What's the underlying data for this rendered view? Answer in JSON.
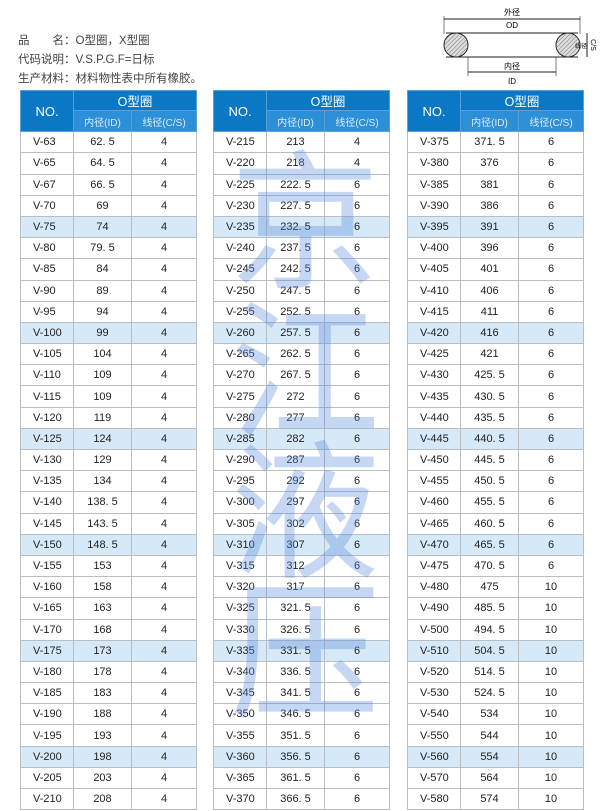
{
  "info": {
    "line1": "品　　名：O型圈，X型圈",
    "line2": "代码说明：V.S.P.G.F=日标",
    "line3": "生产材料：材料物性表中所有橡胶。"
  },
  "diagram": {
    "od_cn": "外径",
    "od": "OD",
    "id_cn": "内径",
    "id": "ID",
    "cs_cn": "线径",
    "cs": "C/S"
  },
  "watermark": [
    "京",
    "江",
    "液",
    "压"
  ],
  "header": {
    "no": "NO.",
    "group": "O型圈",
    "id": "内径(ID)",
    "cs": "线径(C/S)"
  },
  "colors": {
    "header": "#0b78c6",
    "highlight": "#d6e9f8"
  },
  "tables": [
    [
      [
        "V-63",
        "62. 5",
        "4"
      ],
      [
        "V-65",
        "64. 5",
        "4"
      ],
      [
        "V-67",
        "66. 5",
        "4"
      ],
      [
        "V-70",
        "69",
        "4"
      ],
      [
        "V-75",
        "74",
        "4"
      ],
      [
        "V-80",
        "79. 5",
        "4"
      ],
      [
        "V-85",
        "84",
        "4"
      ],
      [
        "V-90",
        "89",
        "4"
      ],
      [
        "V-95",
        "94",
        "4"
      ],
      [
        "V-100",
        "99",
        "4"
      ],
      [
        "V-105",
        "104",
        "4"
      ],
      [
        "V-110",
        "109",
        "4"
      ],
      [
        "V-115",
        "109",
        "4"
      ],
      [
        "V-120",
        "119",
        "4"
      ],
      [
        "V-125",
        "124",
        "4"
      ],
      [
        "V-130",
        "129",
        "4"
      ],
      [
        "V-135",
        "134",
        "4"
      ],
      [
        "V-140",
        "138. 5",
        "4"
      ],
      [
        "V-145",
        "143. 5",
        "4"
      ],
      [
        "V-150",
        "148. 5",
        "4"
      ],
      [
        "V-155",
        "153",
        "4"
      ],
      [
        "V-160",
        "158",
        "4"
      ],
      [
        "V-165",
        "163",
        "4"
      ],
      [
        "V-170",
        "168",
        "4"
      ],
      [
        "V-175",
        "173",
        "4"
      ],
      [
        "V-180",
        "178",
        "4"
      ],
      [
        "V-185",
        "183",
        "4"
      ],
      [
        "V-190",
        "188",
        "4"
      ],
      [
        "V-195",
        "193",
        "4"
      ],
      [
        "V-200",
        "198",
        "4"
      ],
      [
        "V-205",
        "203",
        "4"
      ],
      [
        "V-210",
        "208",
        "4"
      ]
    ],
    [
      [
        "V-215",
        "213",
        "4"
      ],
      [
        "V-220",
        "218",
        "4"
      ],
      [
        "V-225",
        "222. 5",
        "6"
      ],
      [
        "V-230",
        "227. 5",
        "6"
      ],
      [
        "V-235",
        "232. 5",
        "6"
      ],
      [
        "V-240",
        "237. 5",
        "6"
      ],
      [
        "V-245",
        "242. 5",
        "6"
      ],
      [
        "V-250",
        "247. 5",
        "6"
      ],
      [
        "V-255",
        "252. 5",
        "6"
      ],
      [
        "V-260",
        "257. 5",
        "6"
      ],
      [
        "V-265",
        "262. 5",
        "6"
      ],
      [
        "V-270",
        "267. 5",
        "6"
      ],
      [
        "V-275",
        "272",
        "6"
      ],
      [
        "V-280",
        "277",
        "6"
      ],
      [
        "V-285",
        "282",
        "6"
      ],
      [
        "V-290",
        "287",
        "6"
      ],
      [
        "V-295",
        "292",
        "6"
      ],
      [
        "V-300",
        "297",
        "6"
      ],
      [
        "V-305",
        "302",
        "6"
      ],
      [
        "V-310",
        "307",
        "6"
      ],
      [
        "V-315",
        "312",
        "6"
      ],
      [
        "V-320",
        "317",
        "6"
      ],
      [
        "V-325",
        "321. 5",
        "6"
      ],
      [
        "V-330",
        "326. 5",
        "6"
      ],
      [
        "V-335",
        "331. 5",
        "6"
      ],
      [
        "V-340",
        "336. 5",
        "6"
      ],
      [
        "V-345",
        "341. 5",
        "6"
      ],
      [
        "V-350",
        "346. 5",
        "6"
      ],
      [
        "V-355",
        "351. 5",
        "6"
      ],
      [
        "V-360",
        "356. 5",
        "6"
      ],
      [
        "V-365",
        "361. 5",
        "6"
      ],
      [
        "V-370",
        "366. 5",
        "6"
      ]
    ],
    [
      [
        "V-375",
        "371. 5",
        "6"
      ],
      [
        "V-380",
        "376",
        "6"
      ],
      [
        "V-385",
        "381",
        "6"
      ],
      [
        "V-390",
        "386",
        "6"
      ],
      [
        "V-395",
        "391",
        "6"
      ],
      [
        "V-400",
        "396",
        "6"
      ],
      [
        "V-405",
        "401",
        "6"
      ],
      [
        "V-410",
        "406",
        "6"
      ],
      [
        "V-415",
        "411",
        "6"
      ],
      [
        "V-420",
        "416",
        "6"
      ],
      [
        "V-425",
        "421",
        "6"
      ],
      [
        "V-430",
        "425. 5",
        "6"
      ],
      [
        "V-435",
        "430. 5",
        "6"
      ],
      [
        "V-440",
        "435. 5",
        "6"
      ],
      [
        "V-445",
        "440. 5",
        "6"
      ],
      [
        "V-450",
        "445. 5",
        "6"
      ],
      [
        "V-455",
        "450. 5",
        "6"
      ],
      [
        "V-460",
        "455. 5",
        "6"
      ],
      [
        "V-465",
        "460. 5",
        "6"
      ],
      [
        "V-470",
        "465. 5",
        "6"
      ],
      [
        "V-475",
        "470. 5",
        "6"
      ],
      [
        "V-480",
        "475",
        "10"
      ],
      [
        "V-490",
        "485. 5",
        "10"
      ],
      [
        "V-500",
        "494. 5",
        "10"
      ],
      [
        "V-510",
        "504. 5",
        "10"
      ],
      [
        "V-520",
        "514. 5",
        "10"
      ],
      [
        "V-530",
        "524. 5",
        "10"
      ],
      [
        "V-540",
        "534",
        "10"
      ],
      [
        "V-550",
        "544",
        "10"
      ],
      [
        "V-560",
        "554",
        "10"
      ],
      [
        "V-570",
        "564",
        "10"
      ],
      [
        "V-580",
        "574",
        "10"
      ]
    ]
  ]
}
